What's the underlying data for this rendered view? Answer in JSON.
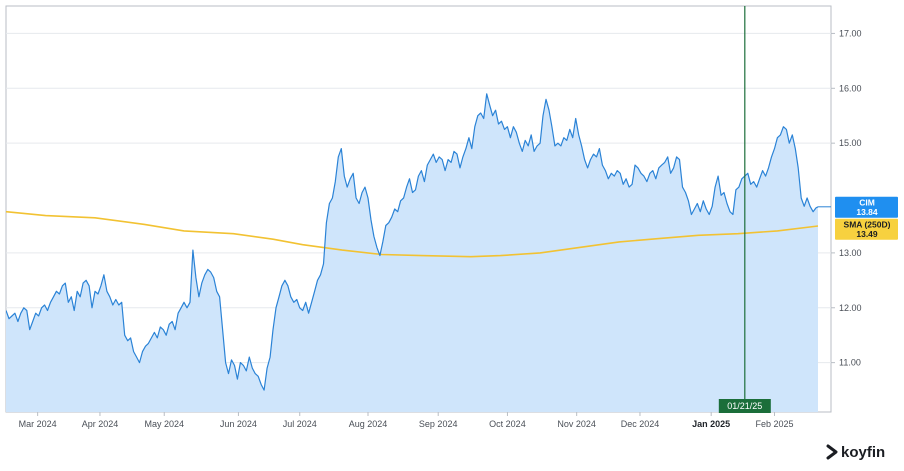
{
  "chart_data": {
    "type": "line",
    "ylim": [
      10.1,
      17.5
    ],
    "y_ticks": [
      "17.00",
      "16.00",
      "15.00",
      "13.00",
      "12.00",
      "11.00"
    ],
    "x_ticks": [
      {
        "label": "Mar 2024",
        "bold": false
      },
      {
        "label": "Apr 2024",
        "bold": false
      },
      {
        "label": "May 2024",
        "bold": false
      },
      {
        "label": "Jun 2024",
        "bold": false
      },
      {
        "label": "Jul 2024",
        "bold": false
      },
      {
        "label": "Aug 2024",
        "bold": false
      },
      {
        "label": "Sep 2024",
        "bold": false
      },
      {
        "label": "Oct 2024",
        "bold": false
      },
      {
        "label": "Nov 2024",
        "bold": false
      },
      {
        "label": "Dec 2024",
        "bold": false
      },
      {
        "label": "Jan 2025",
        "bold": true
      },
      {
        "label": "Feb 2025",
        "bold": false
      }
    ],
    "series": [
      {
        "name": "CIM",
        "color": "#2b83d6",
        "fill": "#cfe5fb",
        "last_value": "13.84",
        "values": [
          [
            0,
            11.95
          ],
          [
            3,
            11.8
          ],
          [
            6,
            11.85
          ],
          [
            9,
            11.9
          ],
          [
            12,
            11.75
          ],
          [
            15,
            11.9
          ],
          [
            18,
            12.0
          ],
          [
            21,
            11.95
          ],
          [
            24,
            11.6
          ],
          [
            27,
            11.75
          ],
          [
            30,
            11.9
          ],
          [
            33,
            11.85
          ],
          [
            36,
            12.0
          ],
          [
            39,
            12.05
          ],
          [
            42,
            11.95
          ],
          [
            45,
            12.1
          ],
          [
            48,
            12.2
          ],
          [
            51,
            12.3
          ],
          [
            54,
            12.25
          ],
          [
            57,
            12.4
          ],
          [
            60,
            12.45
          ],
          [
            63,
            12.1
          ],
          [
            66,
            12.2
          ],
          [
            69,
            11.95
          ],
          [
            72,
            12.3
          ],
          [
            75,
            12.2
          ],
          [
            78,
            12.45
          ],
          [
            81,
            12.5
          ],
          [
            84,
            12.4
          ],
          [
            87,
            12.0
          ],
          [
            90,
            12.3
          ],
          [
            93,
            12.25
          ],
          [
            96,
            12.4
          ],
          [
            99,
            12.6
          ],
          [
            102,
            12.3
          ],
          [
            105,
            12.2
          ],
          [
            108,
            12.05
          ],
          [
            111,
            12.15
          ],
          [
            114,
            12.05
          ],
          [
            117,
            12.1
          ],
          [
            120,
            11.5
          ],
          [
            123,
            11.4
          ],
          [
            126,
            11.45
          ],
          [
            129,
            11.2
          ],
          [
            132,
            11.1
          ],
          [
            135,
            11.0
          ],
          [
            138,
            11.2
          ],
          [
            141,
            11.3
          ],
          [
            144,
            11.35
          ],
          [
            147,
            11.45
          ],
          [
            150,
            11.55
          ],
          [
            153,
            11.45
          ],
          [
            156,
            11.65
          ],
          [
            159,
            11.6
          ],
          [
            162,
            11.5
          ],
          [
            165,
            11.7
          ],
          [
            168,
            11.75
          ],
          [
            171,
            11.6
          ],
          [
            174,
            11.9
          ],
          [
            177,
            12.0
          ],
          [
            180,
            12.1
          ],
          [
            183,
            12.0
          ],
          [
            186,
            12.1
          ],
          [
            189,
            13.05
          ],
          [
            192,
            12.55
          ],
          [
            195,
            12.2
          ],
          [
            198,
            12.45
          ],
          [
            201,
            12.6
          ],
          [
            204,
            12.7
          ],
          [
            207,
            12.65
          ],
          [
            210,
            12.55
          ],
          [
            213,
            12.3
          ],
          [
            216,
            12.2
          ],
          [
            219,
            11.6
          ],
          [
            222,
            11.0
          ],
          [
            225,
            10.8
          ],
          [
            228,
            11.05
          ],
          [
            231,
            10.95
          ],
          [
            234,
            10.7
          ],
          [
            237,
            11.0
          ],
          [
            240,
            10.95
          ],
          [
            243,
            10.85
          ],
          [
            246,
            11.1
          ],
          [
            249,
            10.9
          ],
          [
            252,
            10.8
          ],
          [
            255,
            10.75
          ],
          [
            258,
            10.6
          ],
          [
            261,
            10.5
          ],
          [
            264,
            10.9
          ],
          [
            267,
            11.1
          ],
          [
            270,
            11.6
          ],
          [
            273,
            12.0
          ],
          [
            276,
            12.2
          ],
          [
            279,
            12.4
          ],
          [
            282,
            12.5
          ],
          [
            285,
            12.4
          ],
          [
            288,
            12.2
          ],
          [
            291,
            12.1
          ],
          [
            294,
            12.15
          ],
          [
            297,
            12.0
          ],
          [
            300,
            11.95
          ],
          [
            303,
            12.1
          ],
          [
            306,
            11.9
          ],
          [
            309,
            12.1
          ],
          [
            312,
            12.3
          ],
          [
            315,
            12.5
          ],
          [
            318,
            12.6
          ],
          [
            321,
            12.8
          ],
          [
            324,
            13.55
          ],
          [
            327,
            13.9
          ],
          [
            330,
            14.0
          ],
          [
            333,
            14.3
          ],
          [
            336,
            14.75
          ],
          [
            339,
            14.9
          ],
          [
            342,
            14.4
          ],
          [
            345,
            14.2
          ],
          [
            348,
            14.35
          ],
          [
            351,
            14.45
          ],
          [
            354,
            14.0
          ],
          [
            357,
            13.9
          ],
          [
            360,
            14.1
          ],
          [
            363,
            14.2
          ],
          [
            366,
            14.0
          ],
          [
            369,
            13.6
          ],
          [
            372,
            13.3
          ],
          [
            375,
            13.1
          ],
          [
            378,
            12.95
          ],
          [
            381,
            13.2
          ],
          [
            384,
            13.5
          ],
          [
            387,
            13.55
          ],
          [
            390,
            13.65
          ],
          [
            393,
            13.8
          ],
          [
            396,
            13.75
          ],
          [
            399,
            13.95
          ],
          [
            402,
            14.0
          ],
          [
            405,
            14.2
          ],
          [
            408,
            14.35
          ],
          [
            411,
            14.1
          ],
          [
            414,
            14.15
          ],
          [
            417,
            14.4
          ],
          [
            420,
            14.5
          ],
          [
            423,
            14.3
          ],
          [
            426,
            14.6
          ],
          [
            429,
            14.7
          ],
          [
            432,
            14.8
          ],
          [
            435,
            14.65
          ],
          [
            438,
            14.75
          ],
          [
            441,
            14.7
          ],
          [
            444,
            14.5
          ],
          [
            447,
            14.7
          ],
          [
            450,
            14.65
          ],
          [
            453,
            14.85
          ],
          [
            456,
            14.8
          ],
          [
            459,
            14.55
          ],
          [
            462,
            14.75
          ],
          [
            465,
            14.9
          ],
          [
            468,
            15.1
          ],
          [
            471,
            14.9
          ],
          [
            474,
            15.3
          ],
          [
            477,
            15.5
          ],
          [
            480,
            15.55
          ],
          [
            483,
            15.45
          ],
          [
            486,
            15.9
          ],
          [
            489,
            15.7
          ],
          [
            492,
            15.5
          ],
          [
            495,
            15.6
          ],
          [
            498,
            15.35
          ],
          [
            501,
            15.4
          ],
          [
            504,
            15.25
          ],
          [
            507,
            15.3
          ],
          [
            510,
            15.1
          ],
          [
            513,
            15.3
          ],
          [
            516,
            15.2
          ],
          [
            519,
            15.0
          ],
          [
            522,
            14.85
          ],
          [
            525,
            15.05
          ],
          [
            528,
            14.95
          ],
          [
            531,
            15.15
          ],
          [
            534,
            14.85
          ],
          [
            537,
            14.95
          ],
          [
            540,
            15.0
          ],
          [
            543,
            15.5
          ],
          [
            546,
            15.8
          ],
          [
            549,
            15.6
          ],
          [
            552,
            15.3
          ],
          [
            555,
            14.95
          ],
          [
            558,
            15.0
          ],
          [
            561,
            14.95
          ],
          [
            564,
            15.1
          ],
          [
            567,
            15.05
          ],
          [
            570,
            15.25
          ],
          [
            573,
            15.1
          ],
          [
            576,
            15.45
          ],
          [
            579,
            15.15
          ],
          [
            582,
            14.95
          ],
          [
            585,
            14.7
          ],
          [
            588,
            14.55
          ],
          [
            591,
            14.7
          ],
          [
            594,
            14.8
          ],
          [
            597,
            14.75
          ],
          [
            600,
            14.9
          ],
          [
            603,
            14.6
          ],
          [
            606,
            14.5
          ],
          [
            609,
            14.35
          ],
          [
            612,
            14.45
          ],
          [
            615,
            14.4
          ],
          [
            618,
            14.5
          ],
          [
            621,
            14.45
          ],
          [
            624,
            14.25
          ],
          [
            627,
            14.35
          ],
          [
            630,
            14.2
          ],
          [
            633,
            14.25
          ],
          [
            636,
            14.6
          ],
          [
            639,
            14.55
          ],
          [
            642,
            14.45
          ],
          [
            645,
            14.4
          ],
          [
            648,
            14.3
          ],
          [
            651,
            14.45
          ],
          [
            654,
            14.5
          ],
          [
            657,
            14.35
          ],
          [
            660,
            14.55
          ],
          [
            663,
            14.6
          ],
          [
            666,
            14.65
          ],
          [
            669,
            14.75
          ],
          [
            672,
            14.45
          ],
          [
            675,
            14.55
          ],
          [
            678,
            14.75
          ],
          [
            681,
            14.7
          ],
          [
            684,
            14.2
          ],
          [
            687,
            14.1
          ],
          [
            690,
            13.95
          ],
          [
            693,
            13.7
          ],
          [
            696,
            13.8
          ],
          [
            699,
            13.9
          ],
          [
            702,
            13.75
          ],
          [
            705,
            13.95
          ],
          [
            708,
            13.8
          ],
          [
            711,
            13.7
          ],
          [
            714,
            13.85
          ],
          [
            717,
            14.2
          ],
          [
            720,
            14.4
          ],
          [
            723,
            14.05
          ],
          [
            726,
            14.1
          ],
          [
            729,
            13.9
          ],
          [
            732,
            13.75
          ],
          [
            735,
            13.7
          ],
          [
            738,
            14.15
          ],
          [
            741,
            14.2
          ],
          [
            744,
            14.35
          ],
          [
            747,
            14.4
          ],
          [
            750,
            14.45
          ],
          [
            753,
            14.25
          ],
          [
            756,
            14.3
          ],
          [
            759,
            14.2
          ],
          [
            762,
            14.35
          ],
          [
            765,
            14.5
          ],
          [
            768,
            14.4
          ],
          [
            771,
            14.55
          ],
          [
            774,
            14.75
          ],
          [
            777,
            14.9
          ],
          [
            780,
            15.1
          ],
          [
            783,
            15.15
          ],
          [
            786,
            15.3
          ],
          [
            789,
            15.25
          ],
          [
            792,
            15.0
          ],
          [
            795,
            15.15
          ],
          [
            798,
            14.9
          ],
          [
            801,
            14.55
          ],
          [
            804,
            14.0
          ],
          [
            807,
            13.85
          ],
          [
            810,
            14.0
          ],
          [
            813,
            13.85
          ],
          [
            816,
            13.75
          ],
          [
            819,
            13.82
          ],
          [
            821,
            13.84
          ]
        ]
      },
      {
        "name": "SMA (250D)",
        "color": "#f2c232",
        "last_value": "13.49",
        "values": [
          [
            0,
            13.75
          ],
          [
            40,
            13.68
          ],
          [
            90,
            13.64
          ],
          [
            140,
            13.52
          ],
          [
            180,
            13.4
          ],
          [
            230,
            13.35
          ],
          [
            270,
            13.25
          ],
          [
            300,
            13.15
          ],
          [
            340,
            13.05
          ],
          [
            380,
            12.97
          ],
          [
            420,
            12.95
          ],
          [
            470,
            12.93
          ],
          [
            500,
            12.95
          ],
          [
            540,
            13.0
          ],
          [
            580,
            13.1
          ],
          [
            620,
            13.2
          ],
          [
            660,
            13.26
          ],
          [
            700,
            13.32
          ],
          [
            740,
            13.35
          ],
          [
            780,
            13.4
          ],
          [
            821,
            13.49
          ]
        ]
      }
    ],
    "crosshair": {
      "date_label": "01/21/25"
    },
    "price_tag": {
      "label": "CIM",
      "value": "13.84"
    },
    "sma_tag": {
      "label": "SMA (250D)",
      "value": "13.49"
    },
    "colors": {
      "crosshair": "#1b6e3a",
      "tag_blue": "#1f8ff0",
      "tag_yellow": "#f7d13f",
      "grid": "#e6e9ed"
    }
  },
  "logo": {
    "text": "koyfin"
  }
}
